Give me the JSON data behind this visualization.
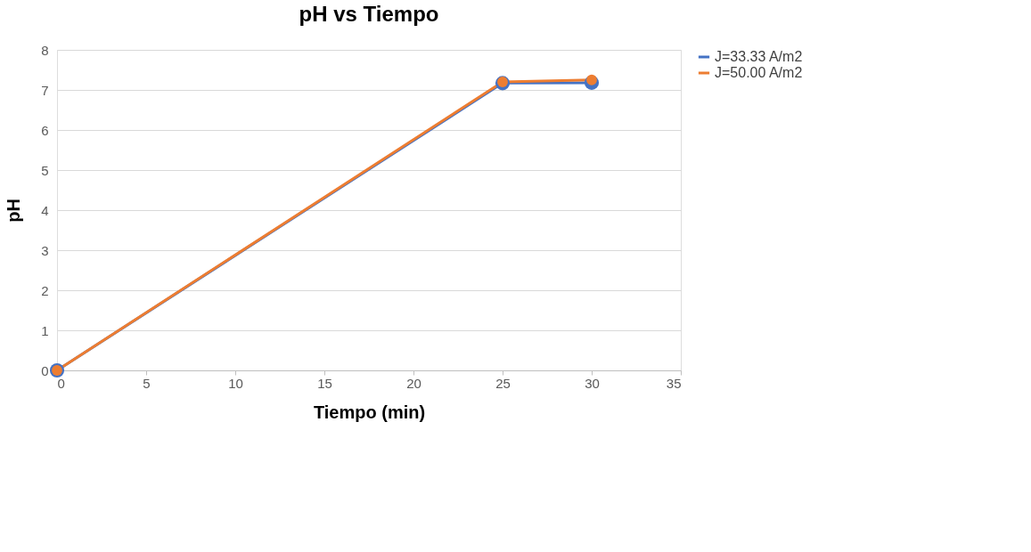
{
  "chart_data": {
    "type": "line",
    "title": "pH vs Tiempo",
    "xlabel": "Tiempo (min)",
    "ylabel": "pH",
    "x": [
      0,
      25,
      30
    ],
    "series": [
      {
        "name": "J=33.33 A/m2",
        "color": "#4472c4",
        "values": [
          0,
          7.17,
          7.18
        ]
      },
      {
        "name": "J=50.00 A/m2",
        "color": "#ed7d31",
        "values": [
          0,
          7.2,
          7.25
        ]
      }
    ],
    "xlim": [
      0,
      35
    ],
    "xticks": [
      0,
      5,
      10,
      15,
      20,
      25,
      30,
      35
    ],
    "ylim": [
      0,
      8
    ],
    "yticks": [
      0,
      1,
      2,
      3,
      4,
      5,
      6,
      7,
      8
    ],
    "grid": "y",
    "legend": "right",
    "marker": "circle",
    "line_style": "solid"
  }
}
